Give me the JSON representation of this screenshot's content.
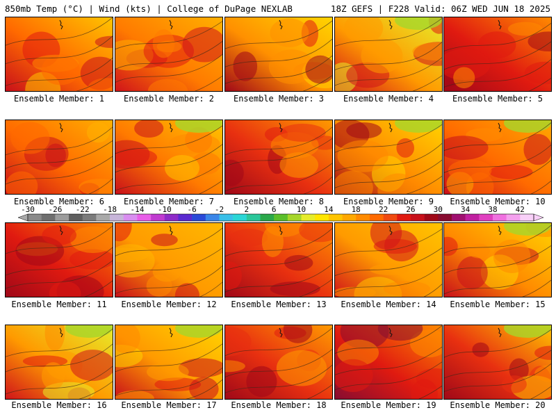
{
  "header": {
    "left": "850mb Temp (°C) | Wind (kts) | College of DuPage NEXLAB",
    "right": "18Z GEFS | F228 Valid: 06Z WED JUN 18 2025"
  },
  "members": [
    {
      "label": "Ensemble Member: 1"
    },
    {
      "label": "Ensemble Member: 2"
    },
    {
      "label": "Ensemble Member: 3"
    },
    {
      "label": "Ensemble Member: 4"
    },
    {
      "label": "Ensemble Member: 5"
    },
    {
      "label": "Ensemble Member: 6"
    },
    {
      "label": "Ensemble Member: 7"
    },
    {
      "label": "Ensemble Member: 8"
    },
    {
      "label": "Ensemble Member: 9"
    },
    {
      "label": "Ensemble Member: 10"
    },
    {
      "label": "Ensemble Member: 11"
    },
    {
      "label": "Ensemble Member: 12"
    },
    {
      "label": "Ensemble Member: 13"
    },
    {
      "label": "Ensemble Member: 14"
    },
    {
      "label": "Ensemble Member: 15"
    },
    {
      "label": "Ensemble Member: 16"
    },
    {
      "label": "Ensemble Member: 17"
    },
    {
      "label": "Ensemble Member: 18"
    },
    {
      "label": "Ensemble Member: 19"
    },
    {
      "label": "Ensemble Member: 20"
    }
  ],
  "colorbar": {
    "labels": [
      "-30",
      "-26",
      "-22",
      "-18",
      "-14",
      "-10",
      "-6",
      "-2",
      "2",
      "6",
      "10",
      "14",
      "18",
      "22",
      "26",
      "30",
      "34",
      "38",
      "42"
    ],
    "colors": [
      "#8a8a8a",
      "#6f6f6f",
      "#9c9c9c",
      "#5f5f5f",
      "#7c7c7c",
      "#a9a9a9",
      "#c7b5d9",
      "#d98ef0",
      "#e85ee8",
      "#c03bd0",
      "#8e2bc8",
      "#5a2ad0",
      "#2a4ad8",
      "#3a86e8",
      "#39bfe8",
      "#2ad6d6",
      "#2ac79a",
      "#2aa84a",
      "#5bbf2a",
      "#a6d62a",
      "#e6ec2a",
      "#ffe600",
      "#ffc400",
      "#ffa800",
      "#ff8a00",
      "#ff6a00",
      "#f04a10",
      "#e01a10",
      "#c8101a",
      "#a00818",
      "#880c30",
      "#a01070",
      "#c020a0",
      "#e040c0",
      "#f070e0",
      "#f4a0ee",
      "#f8d0f8"
    ]
  }
}
